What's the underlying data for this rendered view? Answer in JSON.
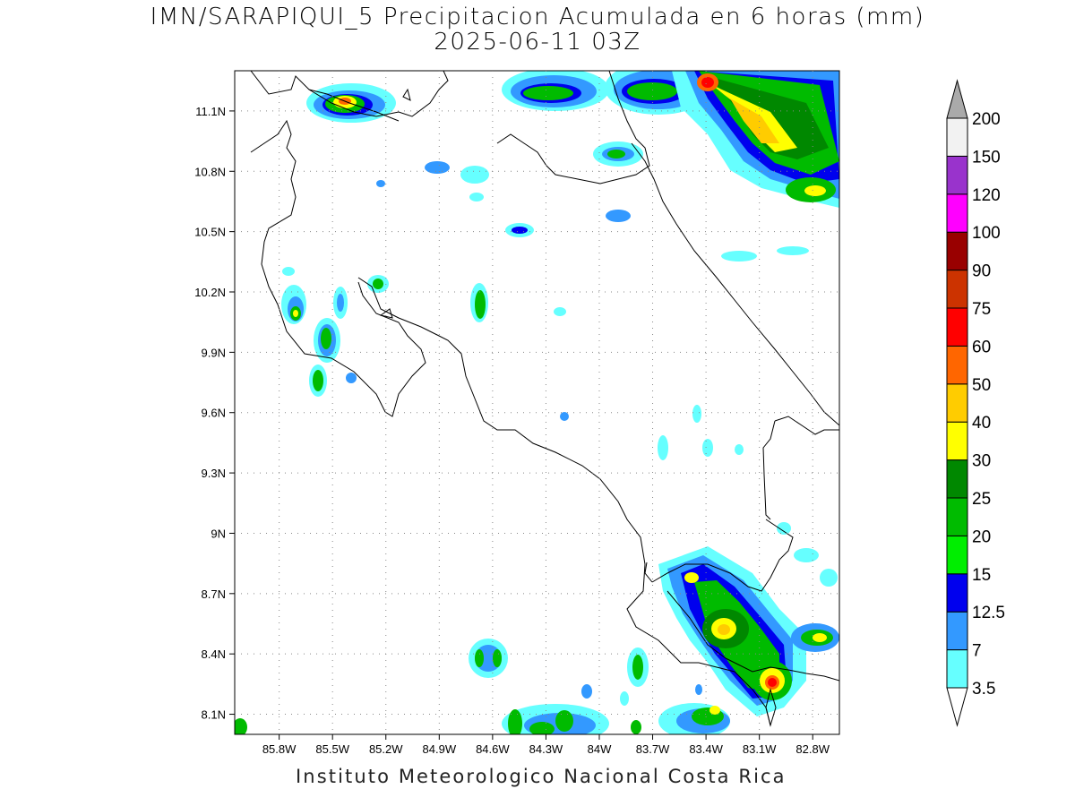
{
  "title_line1": "IMN/SARAPIQUI_5 Precipitacion Acumulada en 6 horas (mm)",
  "title_line2": "2025-06-11 03Z",
  "footer": "Instituto Meteorologico Nacional Costa Rica",
  "map": {
    "lon_range": [
      -86.05,
      -82.65
    ],
    "lat_range": [
      8.0,
      11.3
    ],
    "x_ticks": [
      "85.8W",
      "85.5W",
      "85.2W",
      "84.9W",
      "84.6W",
      "84.3W",
      "84W",
      "83.7W",
      "83.4W",
      "83.1W",
      "82.8W"
    ],
    "y_ticks": [
      "11.1N",
      "10.8N",
      "10.5N",
      "10.2N",
      "9.9N",
      "9.6N",
      "9.3N",
      "9N",
      "8.7N",
      "8.4N",
      "8.1N"
    ]
  },
  "colorbar": {
    "labels": [
      "3.5",
      "7",
      "12.5",
      "15",
      "20",
      "25",
      "30",
      "40",
      "50",
      "60",
      "75",
      "90",
      "100",
      "120",
      "150",
      "200"
    ],
    "colors": [
      "#66ffff",
      "#3399ff",
      "#0000ee",
      "#00ee00",
      "#00bb00",
      "#008800",
      "#ffff00",
      "#ffcc00",
      "#ff6600",
      "#ff0000",
      "#cc3300",
      "#990000",
      "#ff00ff",
      "#9933cc",
      "#f2f2f2"
    ],
    "below_color": "#ffffff",
    "above_color": "#aaaaaa"
  }
}
